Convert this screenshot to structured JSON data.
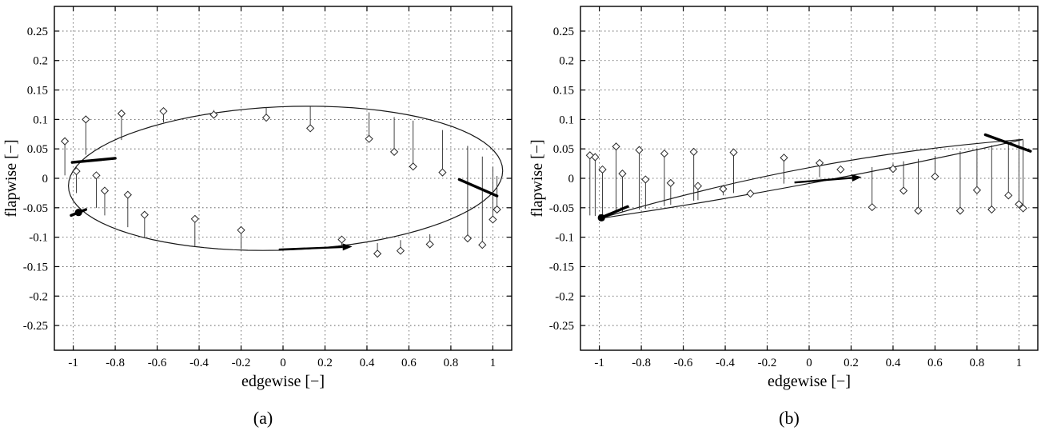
{
  "colors": {
    "background": "#ffffff",
    "axis": "#000000",
    "grid": "#4a4a4a",
    "curve": "#1a1a1a",
    "stem": "#2a2a2a",
    "marker_fill": "#ffffff",
    "annotation": "#000000"
  },
  "chart_data": [
    {
      "id": "a",
      "type": "line",
      "caption": "(a)",
      "xlabel": "edgewise [−]",
      "ylabel": "flapwise [−]",
      "xlim": [
        -1.09,
        1.09
      ],
      "ylim": [
        -0.292,
        0.292
      ],
      "xtick_values": [
        -1,
        -0.8,
        -0.6,
        -0.4,
        -0.2,
        0,
        0.2,
        0.4,
        0.6,
        0.8,
        1
      ],
      "xtick_labels": [
        "-1",
        "-0.8",
        "-0.6",
        "-0.4",
        "-0.2",
        "0",
        "0.2",
        "0.4",
        "0.6",
        "0.8",
        "1"
      ],
      "ytick_values": [
        -0.25,
        -0.2,
        -0.15,
        -0.1,
        -0.05,
        0,
        0.05,
        0.1,
        0.15,
        0.2,
        0.25
      ],
      "ytick_labels": [
        "-0.25",
        "-0.2",
        "-0.15",
        "-0.1",
        "-0.05",
        "0",
        "0.05",
        "0.1",
        "0.15",
        "0.2",
        "0.25"
      ],
      "grid": "dotted",
      "curve": {
        "kind": "ellipse",
        "cx": 0.012,
        "cy": 0.0,
        "rx": 1.035,
        "ry": 0.1225,
        "phase_deg": 6
      },
      "stems": [
        [
          -1.04,
          0.005,
          0.063
        ],
        [
          -0.985,
          -0.025,
          0.012
        ],
        [
          -0.94,
          0.04,
          0.1
        ],
        [
          -0.89,
          -0.05,
          0.005
        ],
        [
          -0.85,
          -0.063,
          -0.021
        ],
        [
          -0.77,
          0.065,
          0.11
        ],
        [
          -0.74,
          -0.083,
          -0.028
        ],
        [
          -0.66,
          -0.1,
          -0.062
        ],
        [
          -0.57,
          0.095,
          0.114
        ],
        [
          -0.42,
          -0.115,
          -0.069
        ],
        [
          -0.33,
          0.116,
          0.108
        ],
        [
          -0.2,
          -0.12,
          -0.088
        ],
        [
          -0.08,
          0.121,
          0.103
        ],
        [
          0.13,
          0.122,
          0.085
        ],
        [
          0.28,
          -0.118,
          -0.104
        ],
        [
          0.41,
          0.112,
          0.067
        ],
        [
          0.45,
          -0.11,
          -0.128
        ],
        [
          0.53,
          0.104,
          0.045
        ],
        [
          0.56,
          -0.105,
          -0.123
        ],
        [
          0.62,
          0.098,
          0.02
        ],
        [
          0.7,
          -0.095,
          -0.112
        ],
        [
          0.76,
          0.082,
          0.01
        ],
        [
          0.88,
          0.055,
          -0.102
        ],
        [
          0.95,
          0.037,
          -0.113
        ],
        [
          1.0,
          0.019,
          -0.07
        ],
        [
          1.02,
          0.004,
          -0.053
        ]
      ],
      "bold_segments": [
        [
          -1.005,
          0.027,
          -0.8,
          0.034
        ],
        [
          0.84,
          -0.002,
          1.02,
          -0.03
        ],
        [
          -1.01,
          -0.063,
          -0.94,
          -0.053
        ]
      ],
      "arrows": [
        [
          -0.02,
          -0.121,
          0.33,
          -0.116
        ]
      ],
      "start_marker": [
        -0.975,
        -0.058
      ]
    },
    {
      "id": "b",
      "type": "line",
      "caption": "(b)",
      "xlabel": "edgewise [−]",
      "ylabel": "flapwise [−]",
      "xlim": [
        -1.09,
        1.09
      ],
      "ylim": [
        -0.292,
        0.292
      ],
      "xtick_values": [
        -1,
        -0.8,
        -0.6,
        -0.4,
        -0.2,
        0,
        0.2,
        0.4,
        0.6,
        0.8,
        1
      ],
      "xtick_labels": [
        "-1",
        "-0.8",
        "-0.6",
        "-0.4",
        "-0.2",
        "0",
        "0.2",
        "0.4",
        "0.6",
        "0.8",
        "1"
      ],
      "ytick_values": [
        -0.25,
        -0.2,
        -0.15,
        -0.1,
        -0.05,
        0,
        0.05,
        0.1,
        0.15,
        0.2,
        0.25
      ],
      "ytick_labels": [
        "-0.25",
        "-0.2",
        "-0.15",
        "-0.1",
        "-0.05",
        "0",
        "0.05",
        "0.1",
        "0.15",
        "0.2",
        "0.25"
      ],
      "grid": "dotted",
      "curve": {
        "kind": "loop",
        "p1": [
          -0.995,
          -0.068
        ],
        "p2": [
          1.02,
          0.066
        ],
        "bulge_up": 0.02,
        "bulge_down": 0.007
      },
      "stems": [
        [
          -1.045,
          -0.063,
          0.039
        ],
        [
          -1.02,
          -0.064,
          0.036
        ],
        [
          -0.985,
          -0.066,
          0.015
        ],
        [
          -0.92,
          -0.058,
          0.054
        ],
        [
          -0.89,
          -0.057,
          0.008
        ],
        [
          -0.81,
          -0.053,
          0.048
        ],
        [
          -0.78,
          -0.052,
          -0.002
        ],
        [
          -0.69,
          -0.047,
          0.042
        ],
        [
          -0.66,
          -0.045,
          -0.008
        ],
        [
          -0.55,
          -0.038,
          0.045
        ],
        [
          -0.53,
          -0.037,
          -0.013
        ],
        [
          -0.41,
          -0.029,
          -0.018
        ],
        [
          -0.36,
          -0.025,
          0.044
        ],
        [
          -0.28,
          -0.02,
          -0.026
        ],
        [
          -0.12,
          -0.009,
          0.035
        ],
        [
          0.05,
          0.002,
          0.026
        ],
        [
          0.15,
          0.009,
          0.015
        ],
        [
          0.3,
          0.019,
          -0.049
        ],
        [
          0.4,
          0.025,
          0.016
        ],
        [
          0.45,
          0.029,
          -0.021
        ],
        [
          0.52,
          0.033,
          -0.055
        ],
        [
          0.6,
          0.038,
          0.003
        ],
        [
          0.72,
          0.046,
          -0.055
        ],
        [
          0.8,
          0.051,
          -0.02
        ],
        [
          0.87,
          0.056,
          -0.053
        ],
        [
          0.95,
          0.061,
          -0.029
        ],
        [
          1.0,
          0.064,
          -0.044
        ],
        [
          1.02,
          0.065,
          -0.051
        ]
      ],
      "bold_segments": [
        [
          -1.0,
          -0.068,
          -0.865,
          -0.048
        ],
        [
          0.84,
          0.074,
          1.055,
          0.046
        ]
      ],
      "arrows": [
        [
          -0.07,
          -0.007,
          0.25,
          0.002
        ]
      ],
      "start_marker": [
        -0.99,
        -0.067
      ]
    }
  ]
}
